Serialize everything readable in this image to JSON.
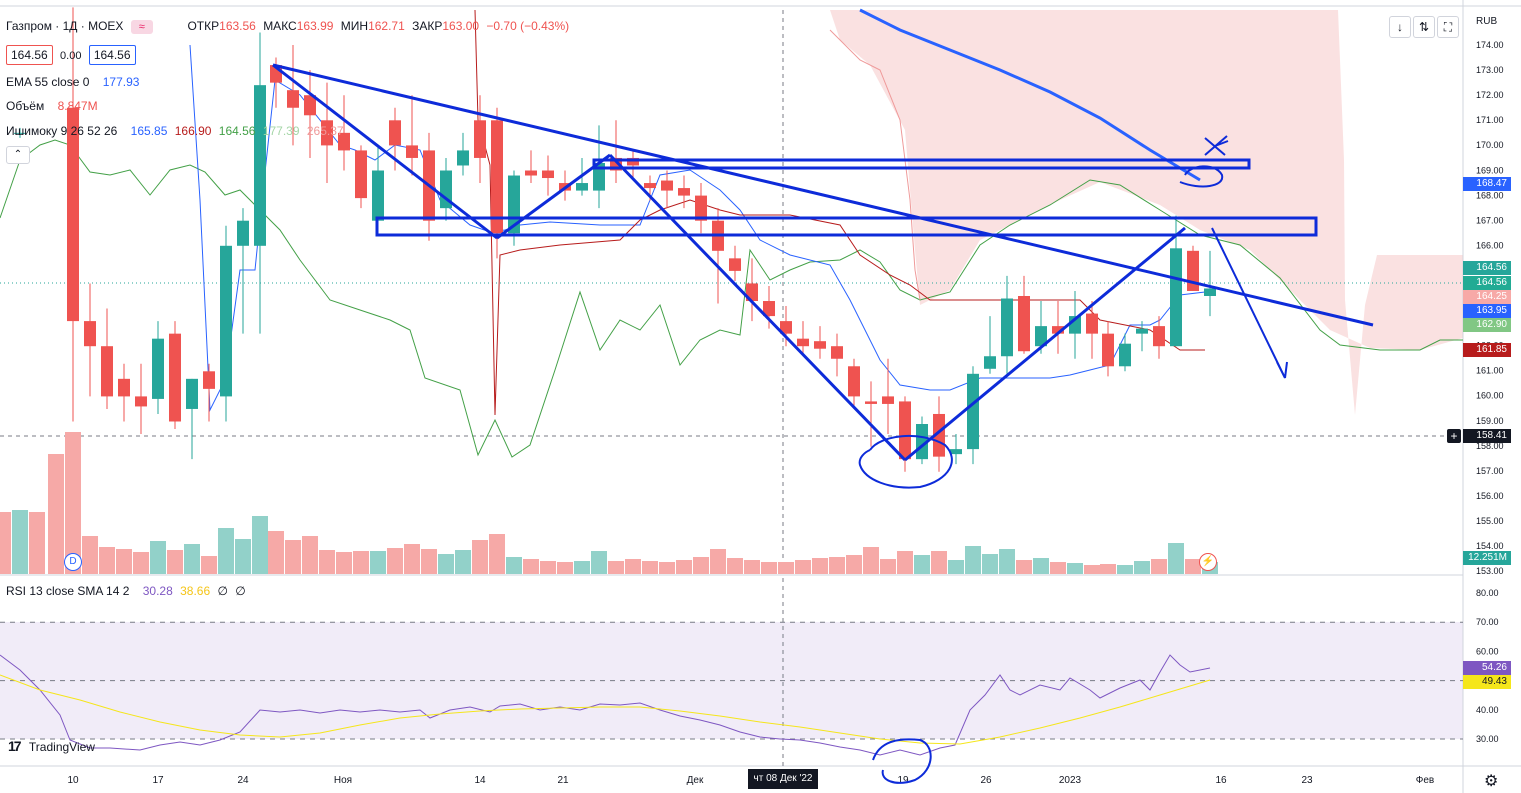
{
  "symbol": {
    "title": "Газпром · 1Д · MOEX",
    "bid": "164.56",
    "spread": "0.00",
    "ask": "164.56",
    "open_label": "ОТКР",
    "open": "163.56",
    "high_label": "МАКС",
    "high": "163.99",
    "low_label": "МИН",
    "low": "162.71",
    "close_label": "ЗАКР",
    "close": "163.00",
    "change": "−0.70 (−0.43%)"
  },
  "indicators": {
    "ema_label": "EMA 55 close 0",
    "ema_value": "177.93",
    "volume_label": "Объём",
    "volume_value": "8.847M",
    "ichimoku_label": "Ишимоку 9 26 52 26",
    "ichimoku_values": [
      "165.85",
      "166.90",
      "164.56",
      "177.39",
      "265.37"
    ],
    "rsi_label": "RSI 13 close SMA 14 2",
    "rsi_values": [
      "30.28",
      "38.66",
      "∅",
      "∅"
    ]
  },
  "currency": "RUB",
  "price_axis": {
    "ticks": [
      "174.00",
      "173.00",
      "172.00",
      "171.00",
      "170.00",
      "169.00",
      "168.00",
      "167.00",
      "166.00",
      "165.00",
      "164.00",
      "163.00",
      "162.00",
      "161.00",
      "160.00",
      "159.00",
      "158.00",
      "157.00",
      "156.00",
      "155.00",
      "154.00",
      "153.00"
    ],
    "labels": [
      {
        "text": "168.47",
        "color": "#2962ff"
      },
      {
        "text": "164.56",
        "color": "#26a69a"
      },
      {
        "text": "164.56",
        "color": "#22ab94"
      },
      {
        "text": "164.25",
        "color": "#f7a9a7"
      },
      {
        "text": "163.95",
        "color": "#2962ff"
      },
      {
        "text": "162.90",
        "color": "#81c784"
      },
      {
        "text": "161.85",
        "color": "#b71c1c"
      },
      {
        "text": "158.41",
        "color": "#131722"
      },
      {
        "text": "12.251M",
        "color": "#26a69a"
      }
    ]
  },
  "rsi_axis": {
    "ticks": [
      "80.00",
      "70.00",
      "60.00",
      "50.00",
      "40.00",
      "30.00"
    ],
    "labels": [
      {
        "text": "54.26",
        "color": "#7e57c2"
      },
      {
        "text": "49.43",
        "color": "#f5e61b"
      }
    ]
  },
  "time_axis": [
    "10",
    "17",
    "24",
    "Ноя",
    "14",
    "21",
    "Дек",
    "19",
    "26",
    "2023",
    "16",
    "23",
    "Фев"
  ],
  "crosshair_date": "чт 08 Дек '22",
  "branding": "TradingView",
  "event_marker": "D",
  "colors": {
    "up": "#26a69a",
    "down": "#ef5350",
    "drawing": "#0d2bd9",
    "rsi": "#7e57c2",
    "rsi_ma": "#f5e61b"
  }
}
